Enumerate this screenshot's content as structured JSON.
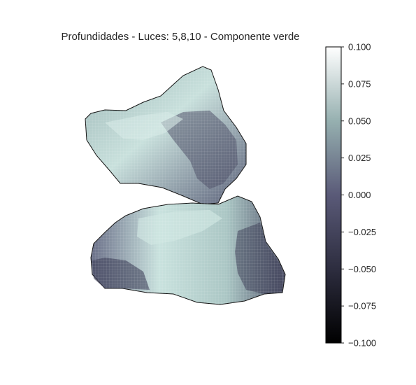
{
  "chart_data": {
    "type": "surface",
    "title": "Profundidades - Luces: 5,8,10 - Componente verde",
    "description_values": {
      "subject": "3D depth surface reconstruction rendered as mesh"
    },
    "colormap": "bone",
    "colorbar": {
      "range": [
        -0.1,
        0.1
      ],
      "ticks": [
        0.1,
        0.075,
        0.05,
        0.025,
        0.0,
        -0.025,
        -0.05,
        -0.075,
        -0.1
      ],
      "tick_labels": [
        "0.100",
        "0.075",
        "0.050",
        "0.025",
        "0.000",
        "−0.025",
        "−0.050",
        "−0.075",
        "−0.100"
      ]
    },
    "axes_visible": false,
    "grid": false
  },
  "colors": {
    "bone_dark": "#000000",
    "bone_mid_dark": "#505068",
    "bone_mid": "#8d9fa4",
    "bone_light": "#c4dcd8",
    "bone_white": "#ffffff",
    "text": "#262626"
  }
}
